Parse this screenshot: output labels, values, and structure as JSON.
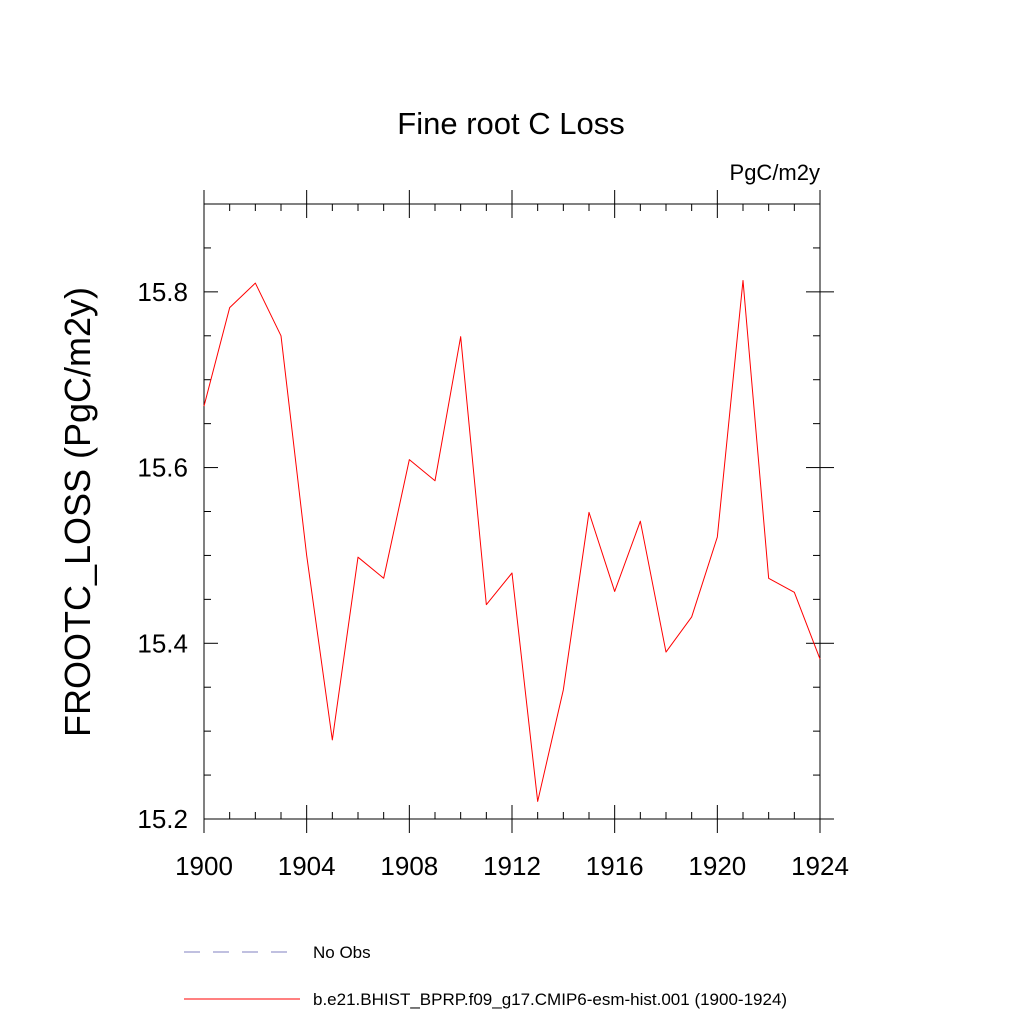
{
  "chart_data": {
    "type": "line",
    "title": "Fine root C Loss",
    "units": "PgC/m2y",
    "xlabel": "",
    "ylabel": "FROOTC_LOSS  (PgC/m2y)",
    "xlim": [
      1900,
      1924
    ],
    "ylim": [
      15.2,
      15.9
    ],
    "x_major_ticks": [
      1900,
      1904,
      1908,
      1912,
      1916,
      1920,
      1924
    ],
    "x_major_tick_labels": [
      "1900",
      "1904",
      "1908",
      "1912",
      "1916",
      "1920",
      "1924"
    ],
    "y_major_ticks": [
      15.2,
      15.4,
      15.6,
      15.8
    ],
    "y_major_tick_labels": [
      "15.2",
      "15.4",
      "15.6",
      "15.8"
    ],
    "grid": false,
    "legend_position": "bottom",
    "series": [
      {
        "name": "b.e21.BHIST_BPRP.f09_g17.CMIP6-esm-hist.001 (1900-1924)",
        "color": "#ff0000",
        "style": "solid",
        "x": [
          1900,
          1901,
          1902,
          1903,
          1904,
          1905,
          1906,
          1907,
          1908,
          1909,
          1910,
          1911,
          1912,
          1913,
          1914,
          1915,
          1916,
          1917,
          1918,
          1919,
          1920,
          1921,
          1922,
          1923,
          1924
        ],
        "values": [
          15.67,
          15.782,
          15.81,
          15.75,
          15.5,
          15.29,
          15.498,
          15.474,
          15.609,
          15.585,
          15.749,
          15.444,
          15.48,
          15.22,
          15.347,
          15.549,
          15.459,
          15.539,
          15.39,
          15.43,
          15.521,
          15.813,
          15.474,
          15.458,
          15.382
        ]
      }
    ],
    "legend": [
      {
        "label": "No Obs",
        "color": "#8080c0",
        "style": "dashed"
      },
      {
        "label": "b.e21.BHIST_BPRP.f09_g17.CMIP6-esm-hist.001 (1900-1924)",
        "color": "#ff0000",
        "style": "solid"
      }
    ]
  }
}
